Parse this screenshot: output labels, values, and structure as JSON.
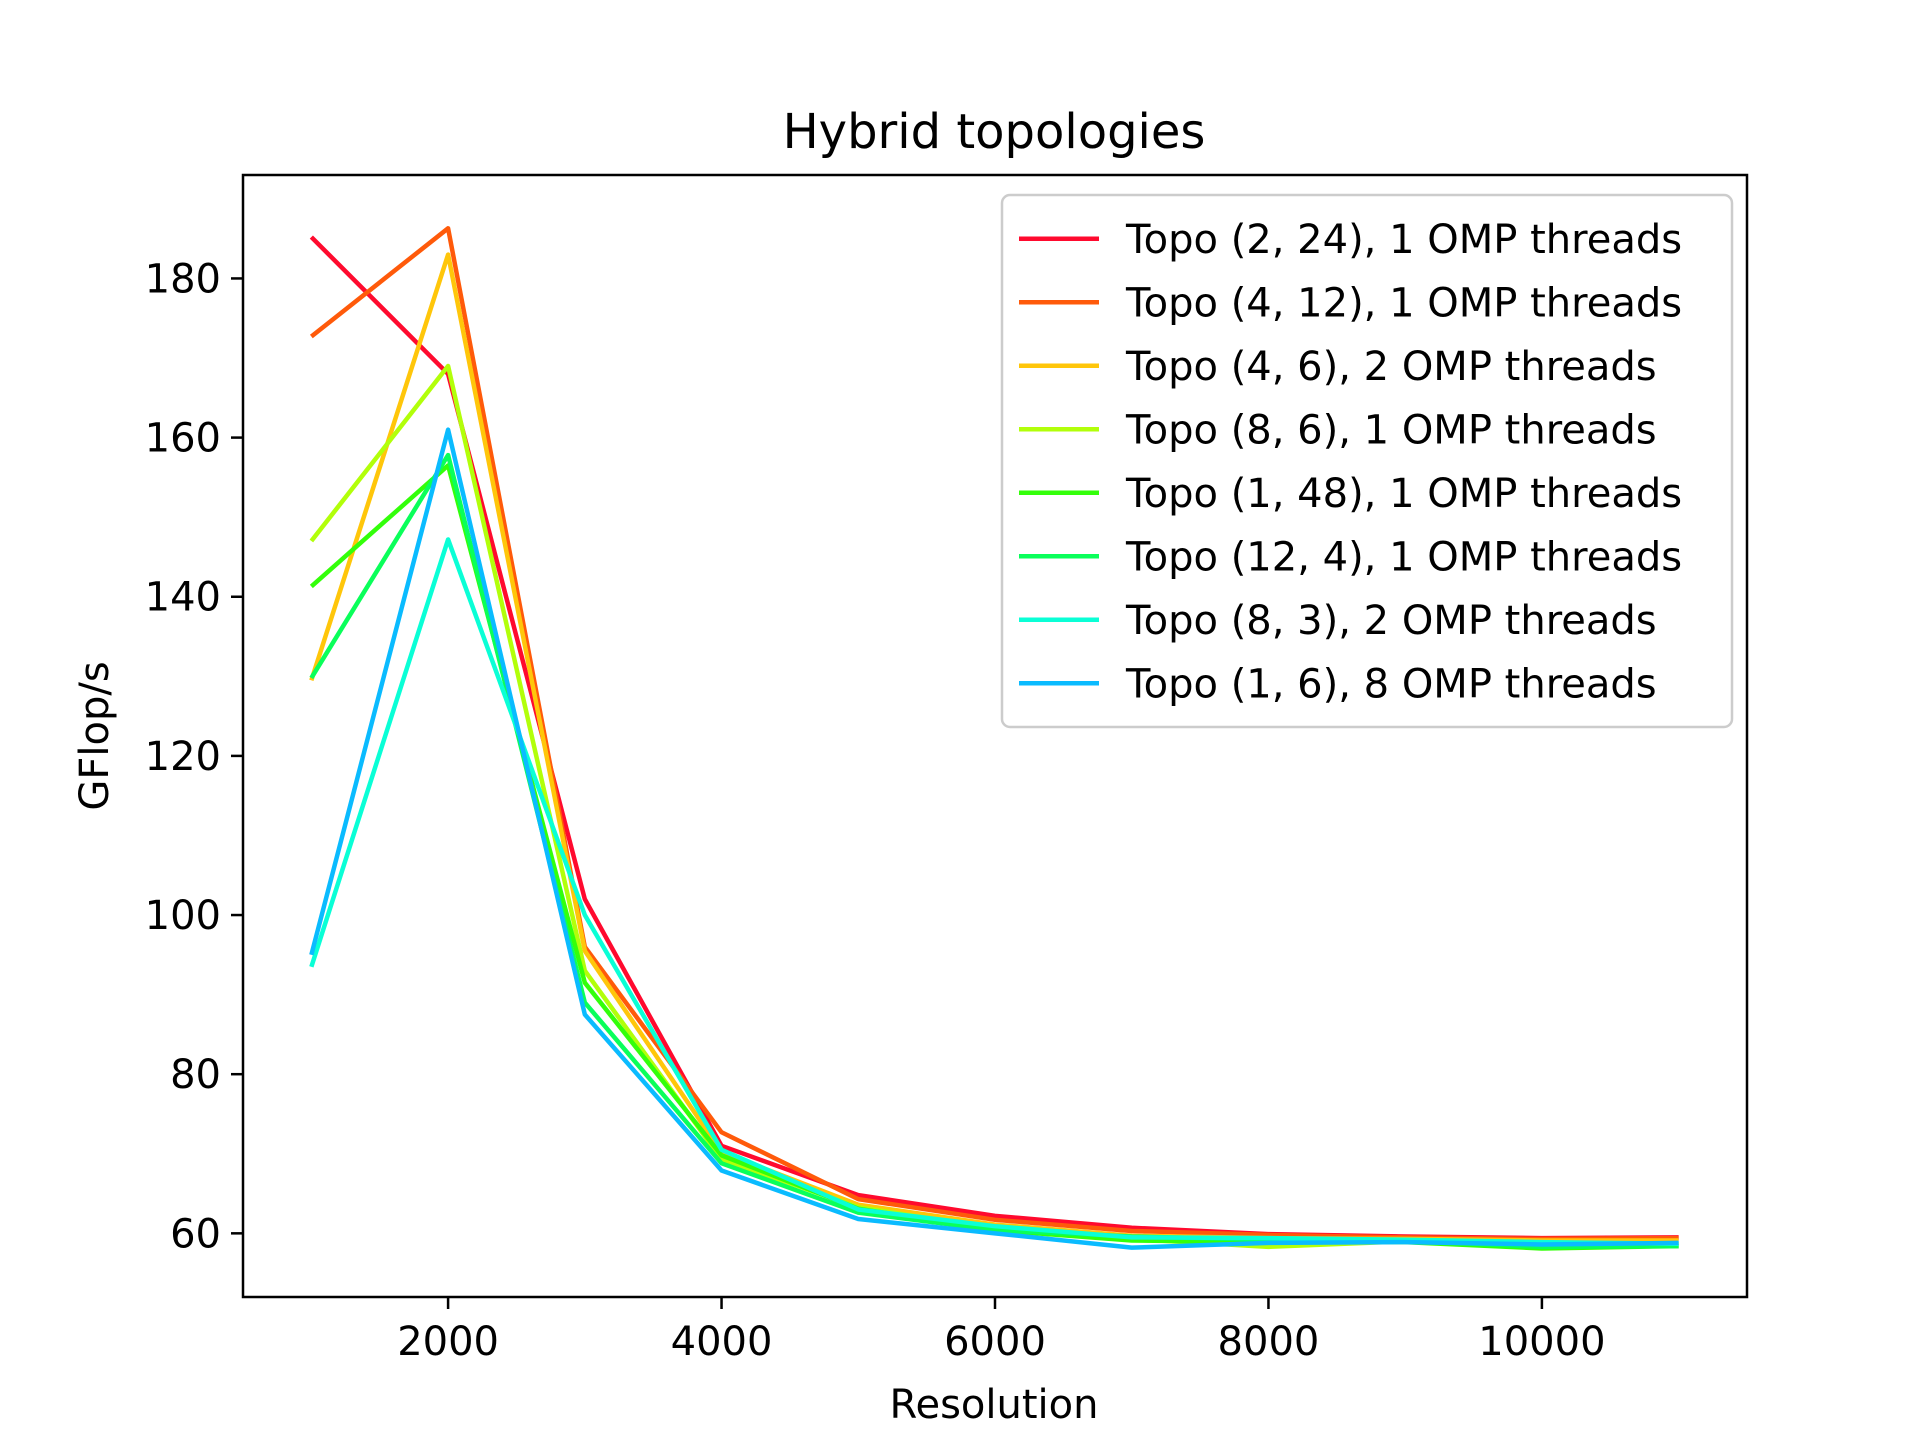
{
  "chart_data": {
    "type": "line",
    "title": "Hybrid topologies",
    "xlabel": "Resolution",
    "ylabel": "GFlop/s",
    "xlim": [
      500,
      11500
    ],
    "ylim": [
      52,
      193
    ],
    "xticks": [
      2000,
      4000,
      6000,
      8000,
      10000
    ],
    "yticks": [
      60,
      80,
      100,
      120,
      140,
      160,
      180
    ],
    "grid": false,
    "legend_position": "top-right",
    "x": [
      1000,
      2000,
      3000,
      4000,
      5000,
      6000,
      7000,
      8000,
      9000,
      10000,
      11000
    ],
    "series": [
      {
        "name": "Topo (2, 24), 1 OMP threads",
        "color": "#ff0a2e",
        "values": [
          185.2,
          168.0,
          102.0,
          71.0,
          64.8,
          62.2,
          60.7,
          59.9,
          59.6,
          59.4,
          59.5
        ]
      },
      {
        "name": "Topo (4, 12), 1 OMP threads",
        "color": "#ff5a0a",
        "values": [
          172.7,
          186.3,
          96.0,
          72.7,
          64.3,
          61.7,
          60.3,
          59.8,
          59.5,
          59.3,
          59.4
        ]
      },
      {
        "name": "Topo (4, 6), 2 OMP threads",
        "color": "#ffc60a",
        "values": [
          129.5,
          183.0,
          95.5,
          70.2,
          63.6,
          61.1,
          59.7,
          59.4,
          59.3,
          59.1,
          59.1
        ]
      },
      {
        "name": "Topo (8, 6), 1 OMP threads",
        "color": "#b2ff0a",
        "values": [
          147.0,
          169.0,
          93.0,
          69.3,
          63.3,
          60.6,
          59.3,
          58.3,
          59.0,
          58.8,
          58.6
        ]
      },
      {
        "name": "Topo (1, 48), 1 OMP threads",
        "color": "#33ff0a",
        "values": [
          141.3,
          156.5,
          91.5,
          69.8,
          63.1,
          60.4,
          59.1,
          58.9,
          58.9,
          58.1,
          58.4
        ]
      },
      {
        "name": "Topo (12, 4), 1 OMP threads",
        "color": "#0aff5a",
        "values": [
          129.8,
          157.8,
          89.0,
          68.8,
          62.6,
          60.4,
          59.6,
          59.2,
          59.1,
          58.3,
          58.4
        ]
      },
      {
        "name": "Topo (8, 3), 2 OMP threads",
        "color": "#0affd6",
        "values": [
          93.5,
          147.2,
          100.0,
          70.5,
          63.0,
          60.9,
          59.5,
          59.4,
          59.2,
          58.9,
          58.7
        ]
      },
      {
        "name": "Topo (1, 6), 8 OMP threads",
        "color": "#0abbff",
        "values": [
          95.0,
          161.0,
          87.5,
          67.9,
          61.8,
          60.0,
          58.2,
          58.8,
          58.9,
          58.6,
          58.8
        ]
      }
    ]
  }
}
